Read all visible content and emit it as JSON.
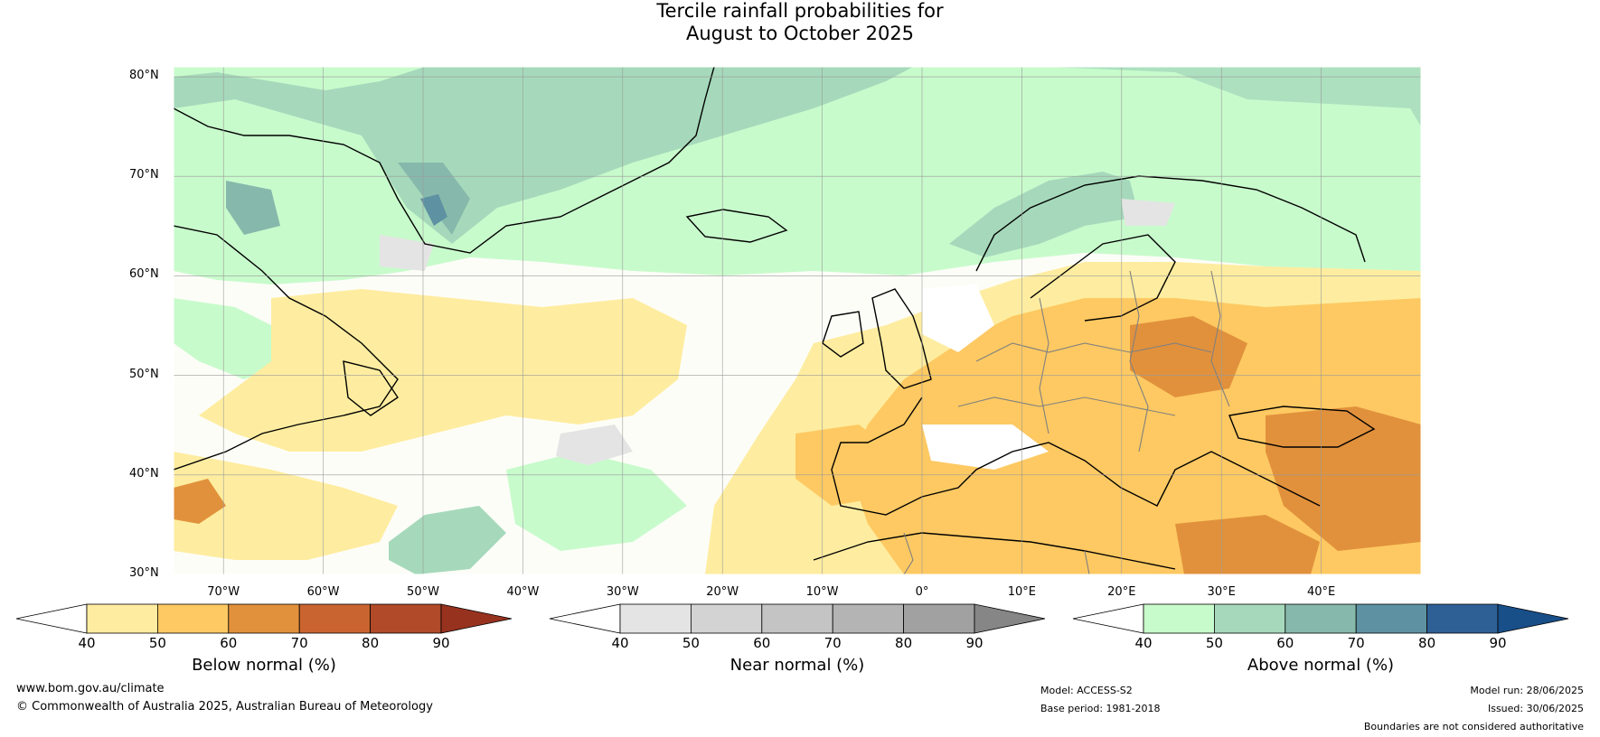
{
  "title": {
    "line1": "Tercile rainfall probabilities for",
    "line2": "August to October 2025"
  },
  "map": {
    "lat_labels": [
      "80°N",
      "70°N",
      "60°N",
      "50°N",
      "40°N",
      "30°N"
    ],
    "lat_values": [
      80,
      70,
      60,
      50,
      40,
      30
    ],
    "lon_labels": [
      "70°W",
      "60°W",
      "50°W",
      "40°W",
      "30°W",
      "20°W",
      "10°W",
      "0°",
      "10°E",
      "20°E",
      "30°E",
      "40°E"
    ],
    "lon_values": [
      -70,
      -60,
      -50,
      -40,
      -30,
      -20,
      -10,
      0,
      10,
      20,
      30,
      40
    ],
    "extent": {
      "lon_min": -75,
      "lon_max": 50,
      "lat_min": 30,
      "lat_max": 81
    }
  },
  "colorbars": [
    {
      "id": "below",
      "label": "Below normal (%)",
      "ticks": [
        "40",
        "50",
        "60",
        "70",
        "80",
        "90"
      ],
      "colors": [
        "#ffffff",
        "#feeda0",
        "#fec962",
        "#e1913c",
        "#c96430",
        "#b04a28",
        "#97321f"
      ]
    },
    {
      "id": "near",
      "label": "Near normal (%)",
      "ticks": [
        "40",
        "50",
        "60",
        "70",
        "80",
        "90"
      ],
      "colors": [
        "#ffffff",
        "#e4e4e4",
        "#d3d3d3",
        "#c4c4c4",
        "#b4b4b4",
        "#a1a1a1",
        "#868686"
      ]
    },
    {
      "id": "above",
      "label": "Above normal (%)",
      "ticks": [
        "40",
        "50",
        "60",
        "70",
        "80",
        "90"
      ],
      "colors": [
        "#ffffff",
        "#c8fbcc",
        "#a6d9bb",
        "#86b9ab",
        "#5e92a2",
        "#2e6096",
        "#184f89"
      ]
    }
  ],
  "footer": {
    "website": "www.bom.gov.au/climate",
    "copyright": "© Commonwealth of Australia 2025, Australian Bureau of Meteorology",
    "model": "Model: ACCESS-S2",
    "base_period": "Base period: 1981-2018",
    "model_run": "Model run: 28/06/2025",
    "issued": "Issued: 30/06/2025",
    "disclaimer": "Boundaries are not considered authoritative"
  }
}
